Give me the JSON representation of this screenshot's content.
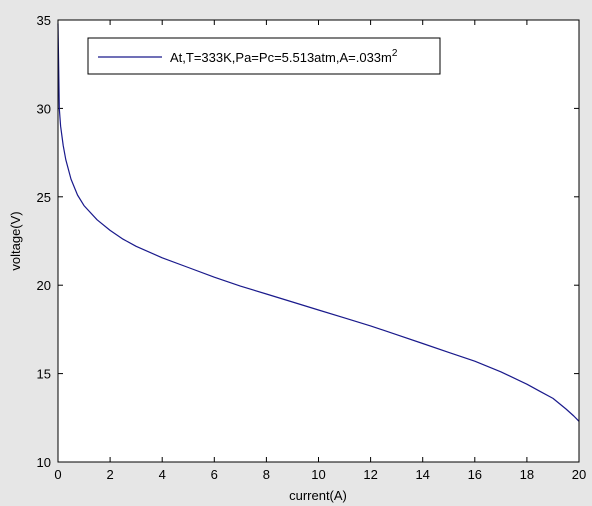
{
  "chart_data": {
    "type": "line",
    "title": "",
    "xlabel": "current(A)",
    "ylabel": "voltage(V)",
    "xlim": [
      0,
      20
    ],
    "ylim": [
      10,
      35
    ],
    "xticks": [
      0,
      2,
      4,
      6,
      8,
      10,
      12,
      14,
      16,
      18,
      20
    ],
    "yticks": [
      10,
      15,
      20,
      25,
      30,
      35
    ],
    "grid": false,
    "legend_position": "top-left",
    "colors": {
      "figure_background": "#e6e6e6",
      "axes_background": "#ffffff",
      "axis": "#000000",
      "series": "#1a1a8c"
    },
    "series": [
      {
        "name": "At,T=333K,Pa=Pc=5.513atm,A=.033m",
        "name_superscript": "2",
        "x": [
          0,
          0.05,
          0.1,
          0.2,
          0.3,
          0.5,
          0.75,
          1,
          1.5,
          2,
          2.5,
          3,
          4,
          5,
          6,
          7,
          8,
          9,
          10,
          11,
          12,
          13,
          14,
          15,
          16,
          17,
          18,
          18.5,
          19,
          19.5,
          19.8,
          20
        ],
        "y": [
          34.8,
          30.0,
          29.0,
          27.9,
          27.1,
          26.0,
          25.1,
          24.5,
          23.7,
          23.1,
          22.6,
          22.2,
          21.55,
          21.0,
          20.45,
          19.95,
          19.5,
          19.05,
          18.6,
          18.15,
          17.7,
          17.2,
          16.7,
          16.2,
          15.7,
          15.1,
          14.4,
          14.0,
          13.6,
          13.0,
          12.6,
          12.3
        ]
      }
    ]
  }
}
